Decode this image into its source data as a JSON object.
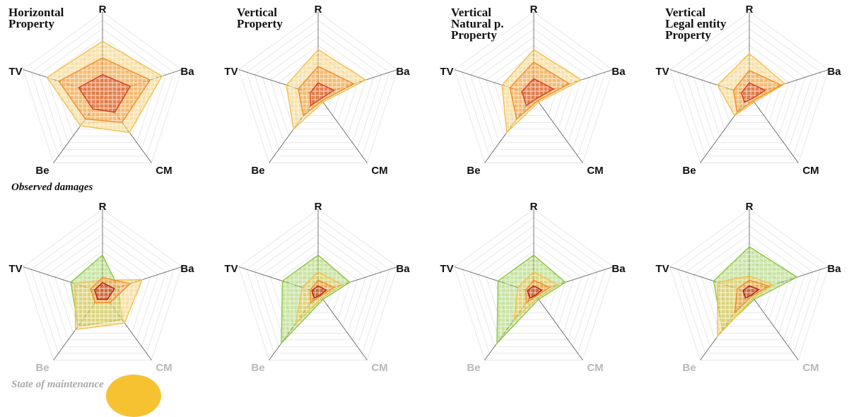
{
  "axes": [
    "R",
    "Ba",
    "CM",
    "Be",
    "TV"
  ],
  "colors": {
    "light": "#f2c14e",
    "mid": "#ef8c2a",
    "dark": "#d63a1c",
    "deep": "#b51a10",
    "good": "#8cc63f",
    "axis_muted": "#b8b8b8",
    "axis_dark": "#111111",
    "grid": "#d9d9d9"
  },
  "row_labels": {
    "observed": "Observed damages",
    "maintenance": "State of maintenance"
  },
  "panel_titles": [
    "Horizontal\nProperty",
    "Vertical\nProperty",
    "Vertical\nNatural p.\nProperty",
    "Vertical\nLegal entity\nProperty"
  ],
  "chart_data": [
    {
      "type": "radar",
      "row": "Observed damages",
      "title": "Horizontal Property",
      "axes": [
        "R",
        "Ba",
        "CM",
        "Be",
        "TV"
      ],
      "max": 1,
      "grid_levels": 10,
      "series": [
        {
          "values": [
            0.65,
            0.75,
            0.55,
            0.45,
            0.7
          ],
          "color": "light"
        },
        {
          "values": [
            0.45,
            0.6,
            0.4,
            0.35,
            0.55
          ],
          "color": "mid"
        },
        {
          "values": [
            0.25,
            0.35,
            0.25,
            0.2,
            0.3
          ],
          "color": "dark"
        }
      ]
    },
    {
      "type": "radar",
      "row": "Observed damages",
      "title": "Vertical Property",
      "axes": [
        "R",
        "Ba",
        "CM",
        "Be",
        "TV"
      ],
      "max": 1,
      "grid_levels": 10,
      "series": [
        {
          "values": [
            0.55,
            0.6,
            0.1,
            0.5,
            0.4
          ],
          "color": "light"
        },
        {
          "values": [
            0.35,
            0.45,
            0.08,
            0.3,
            0.25
          ],
          "color": "mid"
        },
        {
          "values": [
            0.15,
            0.2,
            0.05,
            0.15,
            0.1
          ],
          "color": "dark"
        }
      ]
    },
    {
      "type": "radar",
      "row": "Observed damages",
      "title": "Vertical Natural p. Property",
      "axes": [
        "R",
        "Ba",
        "CM",
        "Be",
        "TV"
      ],
      "max": 1,
      "grid_levels": 10,
      "series": [
        {
          "values": [
            0.55,
            0.6,
            0.1,
            0.55,
            0.4
          ],
          "color": "light"
        },
        {
          "values": [
            0.4,
            0.45,
            0.08,
            0.35,
            0.3
          ],
          "color": "mid"
        },
        {
          "values": [
            0.2,
            0.25,
            0.05,
            0.15,
            0.15
          ],
          "color": "dark"
        }
      ]
    },
    {
      "type": "radar",
      "row": "Observed damages",
      "title": "Vertical Legal entity Property",
      "axes": [
        "R",
        "Ba",
        "CM",
        "Be",
        "TV"
      ],
      "max": 1,
      "grid_levels": 10,
      "series": [
        {
          "values": [
            0.5,
            0.45,
            0.1,
            0.3,
            0.4
          ],
          "color": "light"
        },
        {
          "values": [
            0.3,
            0.4,
            0.08,
            0.25,
            0.2
          ],
          "color": "mid"
        },
        {
          "values": [
            0.15,
            0.2,
            0.05,
            0.1,
            0.1
          ],
          "color": "dark"
        }
      ]
    },
    {
      "type": "radar",
      "row": "State of maintenance",
      "axes": [
        "R",
        "Ba",
        "CM",
        "Be",
        "TV"
      ],
      "max": 1,
      "grid_levels": 10,
      "series": [
        {
          "values": [
            0.45,
            0.2,
            0.4,
            0.5,
            0.4
          ],
          "color": "good"
        },
        {
          "values": [
            0.15,
            0.5,
            0.45,
            0.55,
            0.35
          ],
          "color": "light"
        },
        {
          "values": [
            0.18,
            0.35,
            0.15,
            0.15,
            0.15
          ],
          "color": "mid"
        },
        {
          "values": [
            0.12,
            0.15,
            0.1,
            0.1,
            0.1
          ],
          "color": "deep"
        }
      ]
    },
    {
      "type": "radar",
      "row": "State of maintenance",
      "axes": [
        "R",
        "Ba",
        "CM",
        "Be",
        "TV"
      ],
      "max": 1,
      "grid_levels": 10,
      "series": [
        {
          "values": [
            0.45,
            0.4,
            0.1,
            0.75,
            0.45
          ],
          "color": "good"
        },
        {
          "values": [
            0.25,
            0.3,
            0.08,
            0.45,
            0.2
          ],
          "color": "light"
        },
        {
          "values": [
            0.15,
            0.2,
            0.05,
            0.15,
            0.1
          ],
          "color": "mid"
        },
        {
          "values": [
            0.08,
            0.1,
            0.04,
            0.08,
            0.08
          ],
          "color": "deep"
        }
      ]
    },
    {
      "type": "radar",
      "row": "State of maintenance",
      "axes": [
        "R",
        "Ba",
        "CM",
        "Be",
        "TV"
      ],
      "max": 1,
      "grid_levels": 10,
      "series": [
        {
          "values": [
            0.45,
            0.4,
            0.1,
            0.75,
            0.45
          ],
          "color": "good"
        },
        {
          "values": [
            0.25,
            0.3,
            0.08,
            0.4,
            0.2
          ],
          "color": "light"
        },
        {
          "values": [
            0.15,
            0.2,
            0.05,
            0.15,
            0.1
          ],
          "color": "mid"
        },
        {
          "values": [
            0.08,
            0.1,
            0.04,
            0.08,
            0.08
          ],
          "color": "deep"
        }
      ]
    },
    {
      "type": "radar",
      "row": "State of maintenance",
      "axes": [
        "R",
        "Ba",
        "CM",
        "Be",
        "TV"
      ],
      "max": 1,
      "grid_levels": 10,
      "series": [
        {
          "values": [
            0.55,
            0.6,
            0.1,
            0.55,
            0.45
          ],
          "color": "good"
        },
        {
          "values": [
            0.2,
            0.3,
            0.08,
            0.65,
            0.4
          ],
          "color": "light"
        },
        {
          "values": [
            0.15,
            0.25,
            0.05,
            0.3,
            0.15
          ],
          "color": "mid"
        },
        {
          "values": [
            0.08,
            0.12,
            0.04,
            0.08,
            0.08
          ],
          "color": "deep"
        }
      ]
    }
  ]
}
